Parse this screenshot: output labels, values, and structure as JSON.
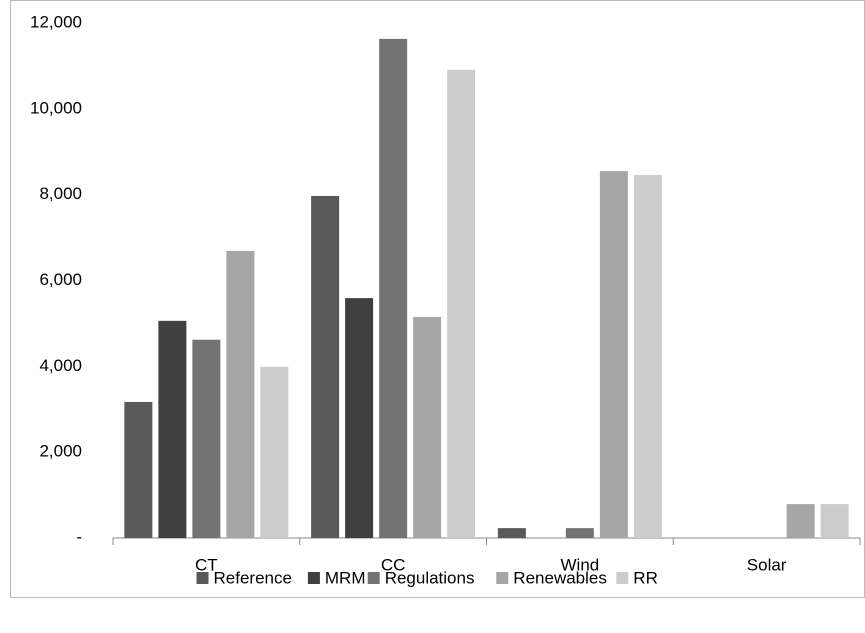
{
  "chart_data": {
    "type": "bar",
    "categories": [
      "CT",
      "CC",
      "Wind",
      "Solar"
    ],
    "series": [
      {
        "name": "Reference",
        "color": "#595959",
        "values": [
          3170,
          7970,
          230,
          0
        ]
      },
      {
        "name": "MRM",
        "color": "#404040",
        "values": [
          5060,
          5590,
          0,
          0
        ]
      },
      {
        "name": "Regulations",
        "color": "#737373",
        "values": [
          4620,
          11630,
          230,
          0
        ]
      },
      {
        "name": "Renewables",
        "color": "#a6a6a6",
        "values": [
          6690,
          5150,
          8550,
          790
        ]
      },
      {
        "name": "RR",
        "color": "#cccccc",
        "values": [
          3990,
          10910,
          8460,
          790
        ]
      }
    ],
    "ylim": [
      0,
      12000
    ],
    "yticks": [
      {
        "value": 0,
        "label": "-"
      },
      {
        "value": 2000,
        "label": "2,000"
      },
      {
        "value": 4000,
        "label": "4,000"
      },
      {
        "value": 6000,
        "label": "6,000"
      },
      {
        "value": 8000,
        "label": "8,000"
      },
      {
        "value": 10000,
        "label": "10,000"
      },
      {
        "value": 12000,
        "label": "12,000"
      }
    ],
    "grid": false,
    "legend": "bottom"
  }
}
